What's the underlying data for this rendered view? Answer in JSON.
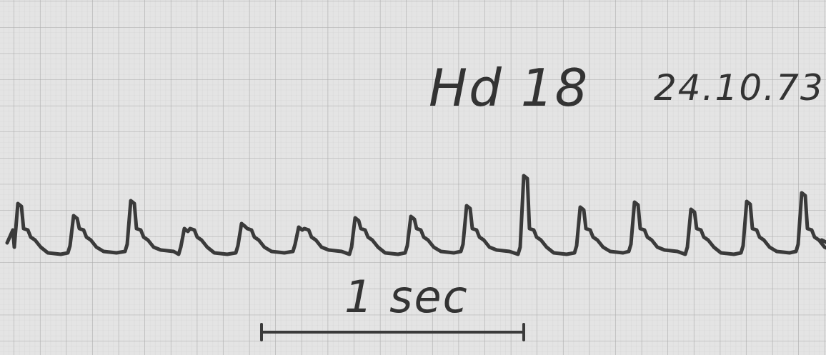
{
  "annotations": {
    "label": "Hd 18",
    "date": "24.10.73",
    "scale": "1 sec"
  }
}
